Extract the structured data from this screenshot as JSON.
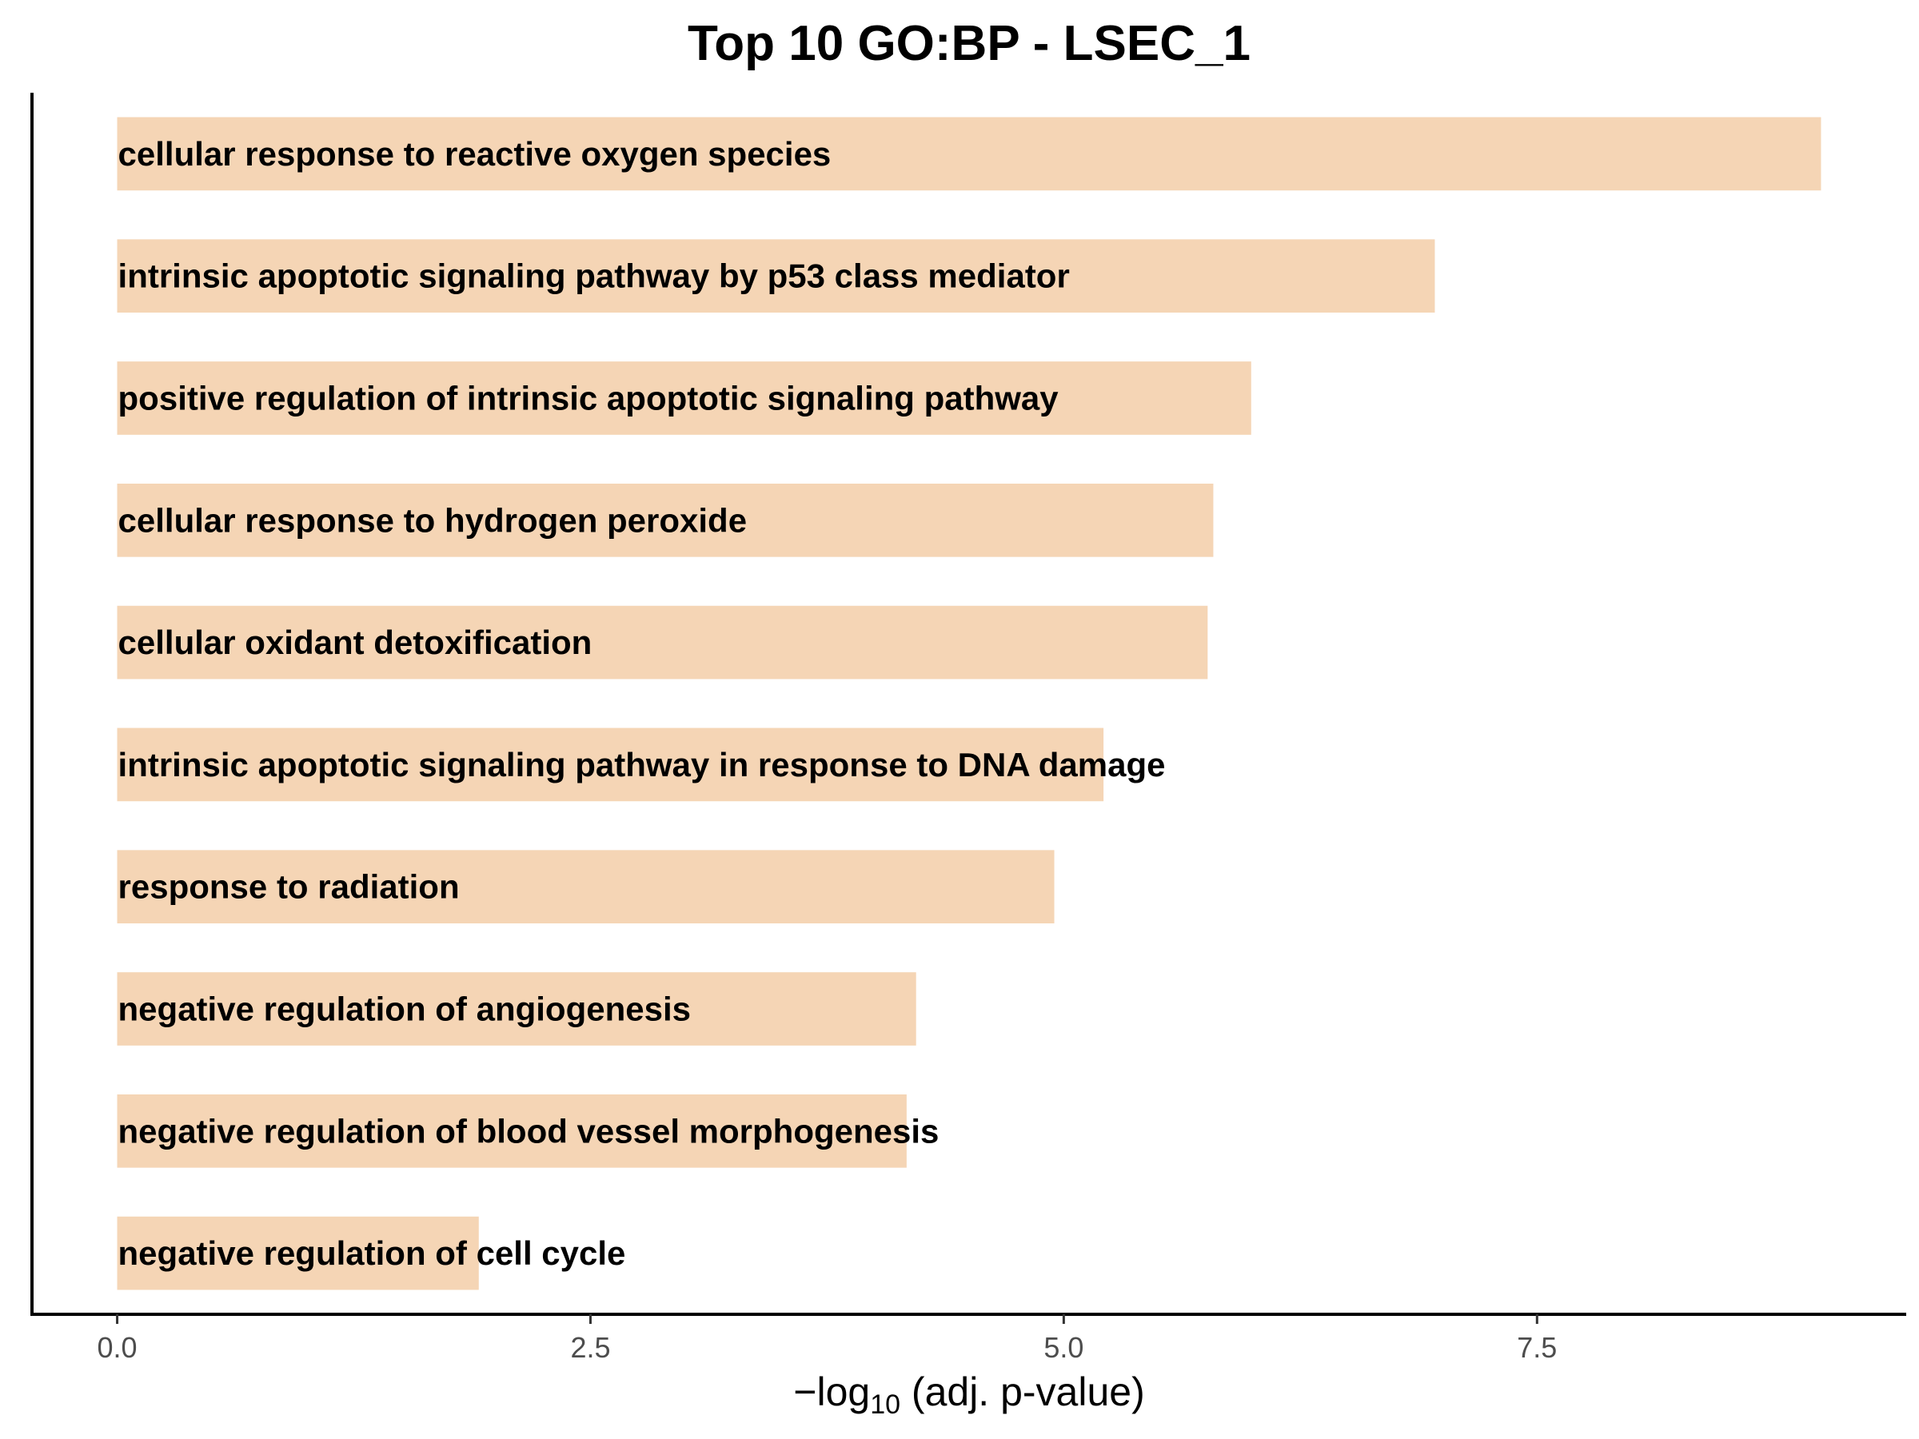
{
  "chart_data": {
    "type": "bar",
    "orientation": "horizontal",
    "title": "Top 10 GO:BP - LSEC_1",
    "xlabel_parts": [
      "−log",
      "10",
      " (adj. p-value)"
    ],
    "xlim": [
      -0.45,
      9.45
    ],
    "xticks": [
      0.0,
      2.5,
      5.0,
      7.5
    ],
    "xtick_labels": [
      "0.0",
      "2.5",
      "5.0",
      "7.5"
    ],
    "grid": false,
    "bar_color": "#f5d5b5",
    "categories": [
      "cellular response to reactive oxygen species",
      "intrinsic apoptotic signaling pathway by p53 class mediator",
      "positive regulation of intrinsic apoptotic signaling pathway",
      "cellular response to hydrogen peroxide",
      "cellular oxidant detoxification",
      "intrinsic apoptotic signaling pathway in response to DNA damage",
      "response to radiation",
      "negative regulation of angiogenesis",
      "negative regulation of blood vessel morphogenesis",
      "negative regulation of cell cycle"
    ],
    "values": [
      9.0,
      6.96,
      5.99,
      5.79,
      5.76,
      5.21,
      4.95,
      4.22,
      4.17,
      1.91
    ]
  }
}
